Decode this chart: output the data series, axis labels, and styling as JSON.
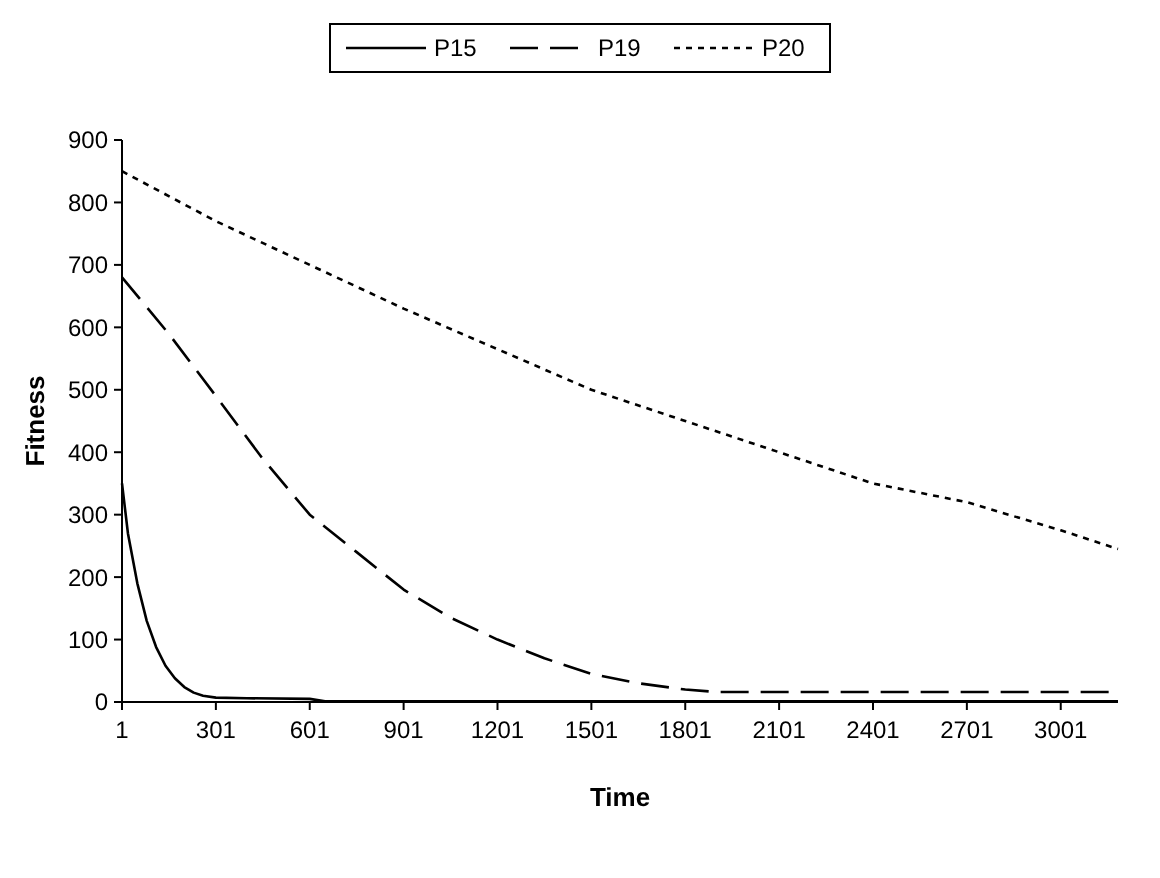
{
  "chart_data": {
    "type": "line",
    "xlabel": "Time",
    "ylabel": "Fitness",
    "xlim": [
      1,
      3184
    ],
    "xticks": [
      1,
      301,
      601,
      901,
      1201,
      1501,
      1801,
      2101,
      2401,
      2701,
      3001
    ],
    "ylim": [
      0,
      900
    ],
    "yticks": [
      0,
      100,
      200,
      300,
      400,
      500,
      600,
      700,
      800,
      900
    ],
    "grid": false,
    "legend": "top",
    "series": [
      {
        "name": "P15",
        "color": "#000000",
        "line_style": "solid",
        "x": [
          1,
          20,
          50,
          80,
          110,
          140,
          170,
          200,
          230,
          260,
          301,
          400,
          601,
          650,
          3184
        ],
        "values": [
          350,
          270,
          190,
          130,
          88,
          58,
          38,
          24,
          15,
          10,
          7,
          6,
          5,
          1,
          1
        ]
      },
      {
        "name": "P19",
        "color": "#000000",
        "line_style": "dashed",
        "x": [
          1,
          150,
          301,
          450,
          601,
          751,
          901,
          1051,
          1201,
          1351,
          1501,
          1651,
          1801,
          1900,
          2400,
          3184
        ],
        "values": [
          680,
          590,
          490,
          390,
          300,
          240,
          180,
          135,
          100,
          70,
          45,
          30,
          20,
          16,
          16,
          16
        ]
      },
      {
        "name": "P20",
        "color": "#000000",
        "line_style": "dotted",
        "x": [
          1,
          301,
          601,
          901,
          1201,
          1501,
          1801,
          2101,
          2401,
          2701,
          3001,
          3184
        ],
        "values": [
          850,
          770,
          700,
          630,
          565,
          500,
          450,
          400,
          350,
          320,
          275,
          245
        ]
      }
    ]
  }
}
